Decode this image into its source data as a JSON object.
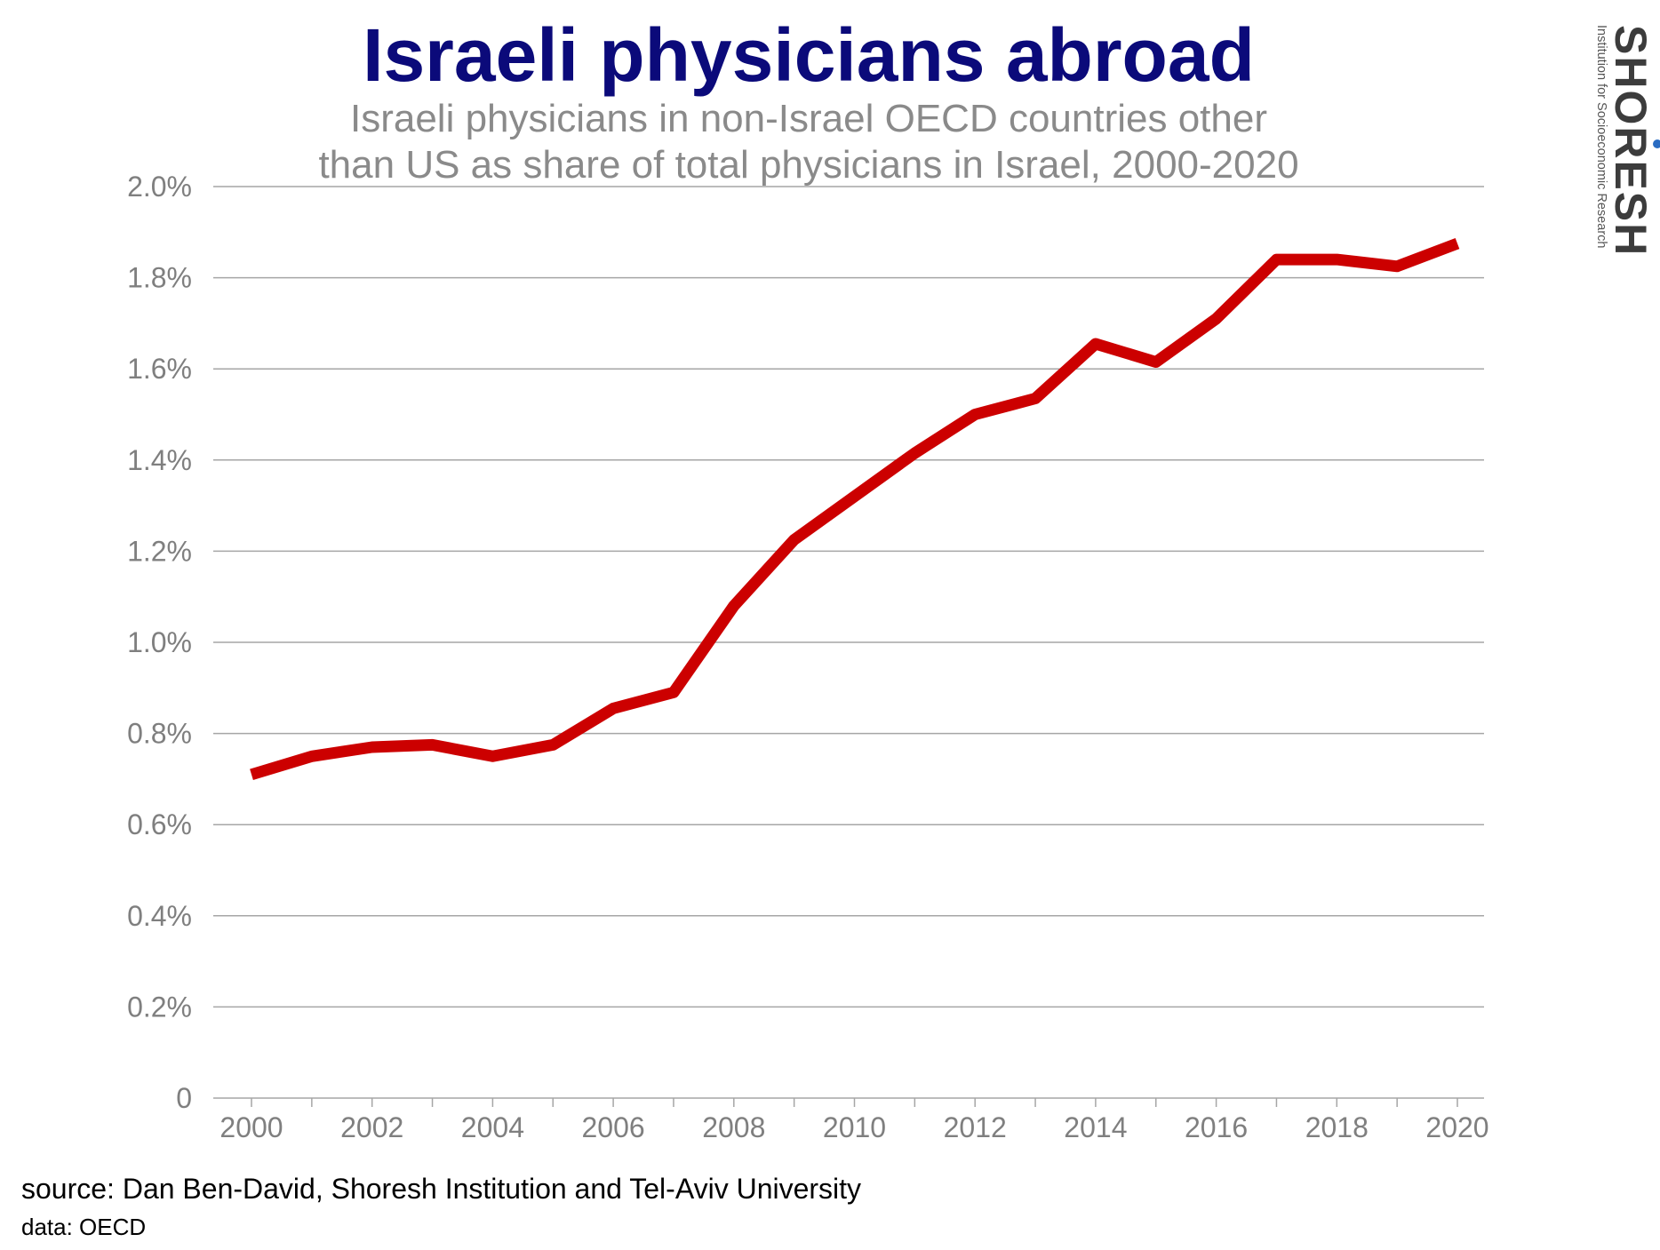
{
  "header": {
    "title": "Israeli physicians abroad",
    "subtitle_line1": "Israeli physicians in non-Israel OECD countries other",
    "subtitle_line2": "than US as share of total physicians in Israel, 2000-2020"
  },
  "logo": {
    "name": "SHORESH",
    "tagline": "Institution for Socioeconomic Research",
    "dot_color": "#2a6cc2"
  },
  "footer": {
    "source": "source: Dan Ben-David, Shoresh Institution and Tel-Aviv University",
    "data": "data: OECD"
  },
  "colors": {
    "title": "#0b0a7a",
    "line": "#cc0000",
    "gridline": "#a6a6a6",
    "tick_text": "#7f7f7f"
  },
  "chart_data": {
    "type": "line",
    "title": "Israeli physicians abroad",
    "subtitle": "Israeli physicians in non-Israel OECD countries other than US as share of total physicians in Israel, 2000-2020",
    "xlabel": "",
    "ylabel": "",
    "x": [
      2000,
      2001,
      2002,
      2003,
      2004,
      2005,
      2006,
      2007,
      2008,
      2009,
      2010,
      2011,
      2012,
      2013,
      2014,
      2015,
      2016,
      2017,
      2018,
      2019,
      2020
    ],
    "series": [
      {
        "values": [
          0.71,
          0.75,
          0.77,
          0.775,
          0.75,
          0.775,
          0.855,
          0.89,
          1.08,
          1.225,
          1.32,
          1.415,
          1.5,
          1.535,
          1.655,
          1.615,
          1.71,
          1.84,
          1.84,
          1.825,
          1.875
        ]
      }
    ],
    "ylim": [
      0,
      2.0
    ],
    "xlim": [
      2000,
      2020
    ],
    "y_ticks": [
      0,
      0.2,
      0.4,
      0.6,
      0.8,
      1.0,
      1.2,
      1.4,
      1.6,
      1.8,
      2.0
    ],
    "y_tick_labels": [
      "0",
      "0.2%",
      "0.4%",
      "0.6%",
      "0.8%",
      "1.0%",
      "1.2%",
      "1.4%",
      "1.6%",
      "1.8%",
      "2.0%"
    ],
    "x_ticks": [
      2000,
      2002,
      2004,
      2006,
      2008,
      2010,
      2012,
      2014,
      2016,
      2018,
      2020
    ],
    "x_tick_labels": [
      "2000",
      "2002",
      "2004",
      "2006",
      "2008",
      "2010",
      "2012",
      "2014",
      "2016",
      "2018",
      "2020"
    ],
    "grid": "horizontal",
    "legend": "none"
  }
}
